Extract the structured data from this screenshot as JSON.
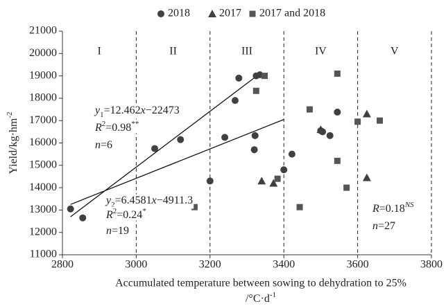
{
  "chart_data": {
    "type": "scatter",
    "xlabel": "Accumulated temperature between sowing to dehydration to 25%",
    "xlabel_unit": [
      {
        "t": "/°C·d",
        "s": "n"
      },
      {
        "t": "-1",
        "s": "sup"
      }
    ],
    "ylabel": [
      {
        "t": "Yield/kg·hm",
        "s": "n"
      },
      {
        "t": "-2",
        "s": "sup"
      }
    ],
    "xlim": [
      2800,
      3800
    ],
    "xticks": [
      2800,
      3000,
      3200,
      3400,
      3600,
      3800
    ],
    "ylim": [
      11000,
      21000
    ],
    "yticks": [
      11000,
      12000,
      13000,
      14000,
      15000,
      16000,
      17000,
      18000,
      19000,
      20000,
      21000
    ],
    "grid": false,
    "legend": "top",
    "boundaries": [
      3000,
      3200,
      3400,
      3600,
      3800
    ],
    "regions": [
      "I",
      "II",
      "III",
      "IV",
      "V"
    ],
    "series": [
      {
        "name": "2018",
        "marker": "circle",
        "color": "#404040",
        "x": [
          2822,
          2855,
          3050,
          3120,
          3200,
          3240,
          3268,
          3278,
          3320,
          3322,
          3325,
          3335,
          3400,
          3422,
          3500,
          3505,
          3525,
          3545
        ],
        "values": [
          13050,
          12650,
          15750,
          16150,
          14300,
          16250,
          17900,
          18900,
          15700,
          16330,
          19000,
          19050,
          14800,
          15500,
          16550,
          16500,
          16330,
          17380
        ]
      },
      {
        "name": "2017",
        "marker": "triangle",
        "color": "#404040",
        "x": [
          3340,
          3372,
          3500,
          3625,
          3625
        ],
        "values": [
          14300,
          14200,
          16600,
          17300,
          14450
        ]
      },
      {
        "name": "2017 and 2018",
        "marker": "square",
        "color": "#555555",
        "x": [
          3158,
          3325,
          3348,
          3383,
          3443,
          3470,
          3545,
          3545,
          3570,
          3600,
          3660
        ],
        "values": [
          13130,
          18330,
          19000,
          14400,
          13130,
          17500,
          19100,
          15200,
          14000,
          16950,
          17000
        ]
      }
    ],
    "fits": [
      {
        "x": [
          2822,
          3335
        ],
        "values": [
          12700,
          19100
        ]
      },
      {
        "x": [
          2822,
          3400
        ],
        "values": [
          13250,
          17050
        ]
      }
    ],
    "annotations": [
      {
        "lines": [
          [
            {
              "t": "y",
              "s": "i"
            },
            {
              "t": "1",
              "s": "sub"
            },
            {
              "t": "=12.462",
              "s": "n"
            },
            {
              "t": "x",
              "s": "i"
            },
            {
              "t": "−22473",
              "s": "n"
            }
          ],
          [
            {
              "t": "R",
              "s": "i"
            },
            {
              "t": "2",
              "s": "sup"
            },
            {
              "t": "=0.98",
              "s": "n"
            },
            {
              "t": "**",
              "s": "sup"
            }
          ],
          [
            {
              "t": "n",
              "s": "i"
            },
            {
              "t": "=6",
              "s": "n"
            }
          ]
        ]
      },
      {
        "lines": [
          [
            {
              "t": "y",
              "s": "i"
            },
            {
              "t": "2",
              "s": "sub"
            },
            {
              "t": "=6.4581",
              "s": "n"
            },
            {
              "t": "x",
              "s": "i"
            },
            {
              "t": "−4911.3",
              "s": "n"
            }
          ],
          [
            {
              "t": "R",
              "s": "i"
            },
            {
              "t": "2",
              "s": "sup"
            },
            {
              "t": "=0.24",
              "s": "n"
            },
            {
              "t": "*",
              "s": "sup"
            }
          ],
          [
            {
              "t": "n",
              "s": "i"
            },
            {
              "t": "=19",
              "s": "n"
            }
          ]
        ]
      },
      {
        "lines": [
          [
            {
              "t": "R",
              "s": "i"
            },
            {
              "t": "=0.18",
              "s": "n"
            },
            {
              "t": "NS",
              "s": "isup"
            }
          ],
          [
            {
              "t": "n",
              "s": "i"
            },
            {
              "t": "=27",
              "s": "n"
            }
          ]
        ]
      }
    ]
  }
}
